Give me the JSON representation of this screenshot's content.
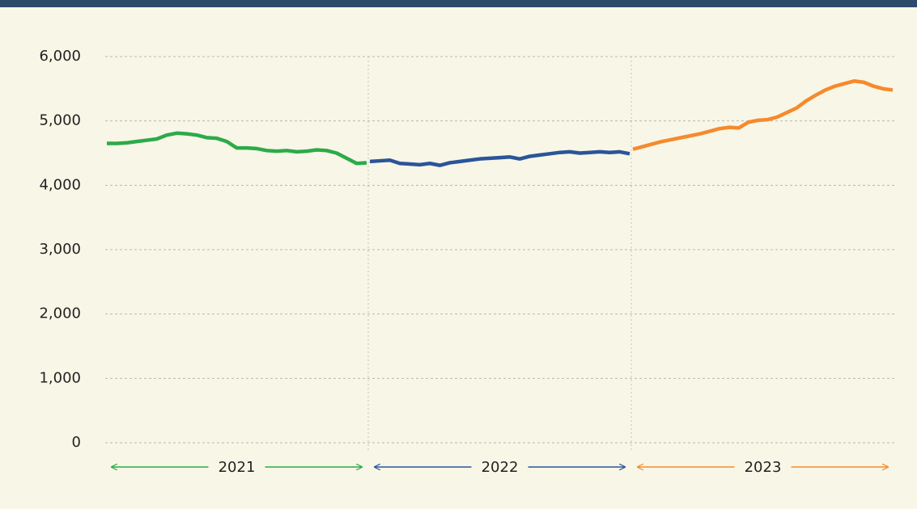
{
  "chart_data": {
    "type": "line",
    "ylim": [
      0,
      6000
    ],
    "yticks": [
      0,
      {
        "value": 1000,
        "label": "1,000"
      },
      {
        "value": 2000,
        "label": "2,000"
      },
      {
        "value": 3000,
        "label": "3,000"
      },
      {
        "value": 4000,
        "label": "4,000"
      },
      {
        "value": 5000,
        "label": "5,000"
      },
      {
        "value": 6000,
        "label": "6,000"
      }
    ],
    "grid": true,
    "series": [
      {
        "name": "2021",
        "color": "#2bab48",
        "values": [
          4650,
          4650,
          4660,
          4680,
          4700,
          4720,
          4780,
          4810,
          4800,
          4780,
          4740,
          4730,
          4680,
          4580,
          4580,
          4570,
          4540,
          4530,
          4540,
          4520,
          4530,
          4550,
          4540,
          4500,
          4420,
          4340,
          4350
        ]
      },
      {
        "name": "2022",
        "color": "#2a5598",
        "values": [
          4370,
          4380,
          4390,
          4340,
          4330,
          4320,
          4340,
          4310,
          4350,
          4370,
          4390,
          4410,
          4420,
          4430,
          4440,
          4410,
          4450,
          4470,
          4490,
          4510,
          4520,
          4500,
          4510,
          4520,
          4510,
          4520,
          4490
        ]
      },
      {
        "name": "2023",
        "color": "#f58a2d",
        "values": [
          4560,
          4600,
          4640,
          4680,
          4710,
          4740,
          4770,
          4800,
          4840,
          4880,
          4900,
          4890,
          4980,
          5010,
          5020,
          5060,
          5130,
          5200,
          5310,
          5400,
          5480,
          5540,
          5580,
          5620,
          5600,
          5540,
          5500,
          5480
        ]
      }
    ]
  }
}
